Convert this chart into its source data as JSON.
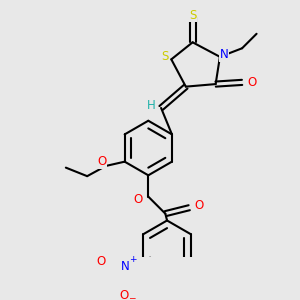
{
  "bg_color": "#e8e8e8",
  "bond_color": "#000000",
  "bond_width": 1.5,
  "atom_colors": {
    "S": "#cccc00",
    "N": "#0000ff",
    "O": "#ff0000",
    "C": "#000000",
    "H": "#20b2aa"
  },
  "font_size_atom": 8.5,
  "font_size_small": 6.5,
  "figsize": [
    3.0,
    3.0
  ],
  "dpi": 100
}
